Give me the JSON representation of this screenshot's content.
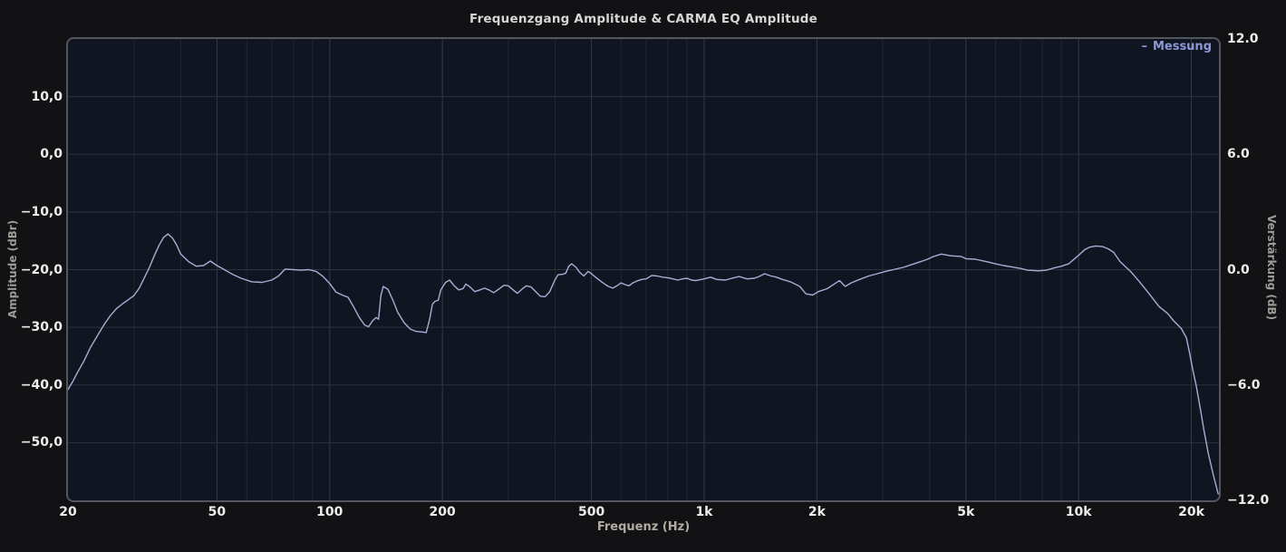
{
  "title": "Frequenzgang Amplitude & CARMA EQ Amplitude",
  "legend": {
    "marker": "–",
    "label": "Messung",
    "color": "#8d99d6",
    "position": "top-right"
  },
  "axes": {
    "x": {
      "label": "Frequenz (Hz)",
      "scale": "log",
      "min": 20,
      "max": 23700,
      "ticks": [
        {
          "f": 20,
          "label": "20"
        },
        {
          "f": 50,
          "label": "50"
        },
        {
          "f": 100,
          "label": "100"
        },
        {
          "f": 200,
          "label": "200"
        },
        {
          "f": 500,
          "label": "500"
        },
        {
          "f": 1000,
          "label": "1k"
        },
        {
          "f": 2000,
          "label": "2k"
        },
        {
          "f": 5000,
          "label": "5k"
        },
        {
          "f": 10000,
          "label": "10k"
        },
        {
          "f": 20000,
          "label": "20k"
        }
      ],
      "minor_gridlines": [
        30,
        40,
        60,
        70,
        80,
        90,
        300,
        400,
        600,
        700,
        800,
        900,
        3000,
        4000,
        6000,
        7000,
        8000,
        9000
      ]
    },
    "y_left": {
      "label": "Amplitude (dBr)",
      "min": -60,
      "max": 20,
      "ticks": [
        {
          "v": 10,
          "label": "10,0"
        },
        {
          "v": 0,
          "label": "0,0"
        },
        {
          "v": -10,
          "label": "−10,0"
        },
        {
          "v": -20,
          "label": "−20,0"
        },
        {
          "v": -30,
          "label": "−30,0"
        },
        {
          "v": -40,
          "label": "−40,0"
        },
        {
          "v": -50,
          "label": "−50,0"
        }
      ]
    },
    "y_right": {
      "label": "Verstärkung (dB)",
      "min": -12,
      "max": 12,
      "ticks": [
        {
          "v": 12,
          "label": "12.0"
        },
        {
          "v": 6,
          "label": "6.0"
        },
        {
          "v": 0,
          "label": "0.0"
        },
        {
          "v": -6,
          "label": "−6.0"
        },
        {
          "v": -12,
          "label": "−12.0"
        }
      ]
    }
  },
  "colors": {
    "background": "#121214",
    "plot_background": "#111522",
    "plot_border": "#52575f",
    "grid_minor": "#212631",
    "grid_major": "#343a46",
    "grid_horizontal": "#2d323d",
    "trace": "#a7aed3",
    "tick_text": "#ededed",
    "title_text": "#d6d6d6"
  },
  "chart_data": {
    "type": "line",
    "title": "Frequenzgang Amplitude & CARMA EQ Amplitude",
    "xlabel": "Frequenz (Hz)",
    "ylabel": "Amplitude (dBr)",
    "ylabel_right": "Verstärkung (dB)",
    "x_scale": "log",
    "xlim": [
      20,
      23700
    ],
    "ylim": [
      -60,
      20
    ],
    "ylim_right": [
      -12,
      12
    ],
    "grid": true,
    "legend_position": "top-right",
    "series": [
      {
        "name": "Messung",
        "color": "#a7aed3",
        "axis": "left",
        "units": "dBr",
        "points": [
          [
            20,
            -40.8
          ],
          [
            20.6,
            -39.4
          ],
          [
            21.2,
            -37.8
          ],
          [
            22,
            -36.0
          ],
          [
            23,
            -33.4
          ],
          [
            24,
            -31.4
          ],
          [
            25,
            -29.5
          ],
          [
            26,
            -27.9
          ],
          [
            27,
            -26.7
          ],
          [
            28,
            -25.9
          ],
          [
            29,
            -25.2
          ],
          [
            30,
            -24.5
          ],
          [
            31,
            -23.2
          ],
          [
            32,
            -21.4
          ],
          [
            33,
            -19.6
          ],
          [
            34,
            -17.6
          ],
          [
            35,
            -15.8
          ],
          [
            36,
            -14.4
          ],
          [
            37,
            -13.8
          ],
          [
            38,
            -14.5
          ],
          [
            39,
            -15.7
          ],
          [
            40,
            -17.3
          ],
          [
            42,
            -18.6
          ],
          [
            44,
            -19.4
          ],
          [
            46,
            -19.3
          ],
          [
            48,
            -18.5
          ],
          [
            50,
            -19.3
          ],
          [
            52,
            -19.9
          ],
          [
            55,
            -20.8
          ],
          [
            58,
            -21.5
          ],
          [
            62,
            -22.1
          ],
          [
            66,
            -22.2
          ],
          [
            70,
            -21.8
          ],
          [
            73,
            -21.1
          ],
          [
            76,
            -19.9
          ],
          [
            80,
            -20.0
          ],
          [
            84,
            -20.1
          ],
          [
            88,
            -20.0
          ],
          [
            92,
            -20.3
          ],
          [
            96,
            -21.2
          ],
          [
            100,
            -22.4
          ],
          [
            104,
            -23.9
          ],
          [
            108,
            -24.4
          ],
          [
            112,
            -24.8
          ],
          [
            116,
            -26.5
          ],
          [
            120,
            -28.3
          ],
          [
            124,
            -29.6
          ],
          [
            127,
            -29.9
          ],
          [
            130,
            -28.9
          ],
          [
            133,
            -28.3
          ],
          [
            135,
            -28.6
          ],
          [
            137,
            -24.5
          ],
          [
            139,
            -22.9
          ],
          [
            143,
            -23.4
          ],
          [
            148,
            -25.5
          ],
          [
            152,
            -27.4
          ],
          [
            158,
            -29.2
          ],
          [
            164,
            -30.3
          ],
          [
            170,
            -30.7
          ],
          [
            176,
            -30.8
          ],
          [
            181,
            -30.9
          ],
          [
            185,
            -28.5
          ],
          [
            188,
            -26.0
          ],
          [
            191,
            -25.5
          ],
          [
            195,
            -25.3
          ],
          [
            198,
            -23.5
          ],
          [
            204,
            -22.2
          ],
          [
            209,
            -21.8
          ],
          [
            215,
            -22.8
          ],
          [
            221,
            -23.5
          ],
          [
            227,
            -23.3
          ],
          [
            231,
            -22.5
          ],
          [
            237,
            -23.0
          ],
          [
            244,
            -23.8
          ],
          [
            252,
            -23.5
          ],
          [
            259,
            -23.2
          ],
          [
            266,
            -23.5
          ],
          [
            274,
            -24.0
          ],
          [
            284,
            -23.3
          ],
          [
            292,
            -22.7
          ],
          [
            300,
            -22.8
          ],
          [
            309,
            -23.5
          ],
          [
            317,
            -24.1
          ],
          [
            326,
            -23.4
          ],
          [
            335,
            -22.8
          ],
          [
            345,
            -23.0
          ],
          [
            355,
            -23.8
          ],
          [
            365,
            -24.6
          ],
          [
            376,
            -24.7
          ],
          [
            387,
            -23.8
          ],
          [
            400,
            -21.7
          ],
          [
            407,
            -20.9
          ],
          [
            419,
            -20.8
          ],
          [
            427,
            -20.6
          ],
          [
            435,
            -19.4
          ],
          [
            443,
            -19.0
          ],
          [
            455,
            -19.6
          ],
          [
            464,
            -20.4
          ],
          [
            477,
            -21.1
          ],
          [
            490,
            -20.3
          ],
          [
            500,
            -20.7
          ],
          [
            513,
            -21.3
          ],
          [
            527,
            -21.9
          ],
          [
            540,
            -22.4
          ],
          [
            555,
            -22.9
          ],
          [
            570,
            -23.2
          ],
          [
            585,
            -22.8
          ],
          [
            600,
            -22.3
          ],
          [
            615,
            -22.6
          ],
          [
            630,
            -22.8
          ],
          [
            645,
            -22.3
          ],
          [
            660,
            -22.0
          ],
          [
            680,
            -21.7
          ],
          [
            700,
            -21.6
          ],
          [
            725,
            -21.0
          ],
          [
            750,
            -21.1
          ],
          [
            775,
            -21.3
          ],
          [
            800,
            -21.4
          ],
          [
            825,
            -21.6
          ],
          [
            850,
            -21.8
          ],
          [
            875,
            -21.6
          ],
          [
            900,
            -21.5
          ],
          [
            925,
            -21.8
          ],
          [
            950,
            -21.9
          ],
          [
            1000,
            -21.6
          ],
          [
            1040,
            -21.3
          ],
          [
            1080,
            -21.7
          ],
          [
            1140,
            -21.8
          ],
          [
            1200,
            -21.4
          ],
          [
            1240,
            -21.2
          ],
          [
            1300,
            -21.6
          ],
          [
            1360,
            -21.5
          ],
          [
            1400,
            -21.2
          ],
          [
            1450,
            -20.7
          ],
          [
            1510,
            -21.1
          ],
          [
            1560,
            -21.3
          ],
          [
            1620,
            -21.7
          ],
          [
            1700,
            -22.1
          ],
          [
            1800,
            -22.9
          ],
          [
            1870,
            -24.2
          ],
          [
            1950,
            -24.4
          ],
          [
            2020,
            -23.8
          ],
          [
            2130,
            -23.3
          ],
          [
            2250,
            -22.3
          ],
          [
            2300,
            -21.9
          ],
          [
            2380,
            -22.9
          ],
          [
            2470,
            -22.3
          ],
          [
            2600,
            -21.7
          ],
          [
            2750,
            -21.1
          ],
          [
            2900,
            -20.7
          ],
          [
            3050,
            -20.3
          ],
          [
            3200,
            -20.0
          ],
          [
            3400,
            -19.6
          ],
          [
            3550,
            -19.2
          ],
          [
            3750,
            -18.7
          ],
          [
            3950,
            -18.2
          ],
          [
            4100,
            -17.7
          ],
          [
            4300,
            -17.3
          ],
          [
            4550,
            -17.6
          ],
          [
            4850,
            -17.7
          ],
          [
            5000,
            -18.1
          ],
          [
            5300,
            -18.2
          ],
          [
            5750,
            -18.7
          ],
          [
            6000,
            -19.0
          ],
          [
            6300,
            -19.3
          ],
          [
            6600,
            -19.5
          ],
          [
            7000,
            -19.8
          ],
          [
            7300,
            -20.1
          ],
          [
            7800,
            -20.2
          ],
          [
            8200,
            -20.1
          ],
          [
            8600,
            -19.7
          ],
          [
            9000,
            -19.4
          ],
          [
            9400,
            -19.0
          ],
          [
            9800,
            -18.0
          ],
          [
            10000,
            -17.5
          ],
          [
            10400,
            -16.5
          ],
          [
            10700,
            -16.1
          ],
          [
            11100,
            -15.9
          ],
          [
            11600,
            -16.0
          ],
          [
            12000,
            -16.4
          ],
          [
            12400,
            -17.0
          ],
          [
            12900,
            -18.6
          ],
          [
            13400,
            -19.6
          ],
          [
            13800,
            -20.4
          ],
          [
            14500,
            -22.0
          ],
          [
            15400,
            -24.1
          ],
          [
            16400,
            -26.4
          ],
          [
            17300,
            -27.6
          ],
          [
            17900,
            -28.8
          ],
          [
            18800,
            -30.2
          ],
          [
            19400,
            -31.8
          ],
          [
            19800,
            -34.5
          ],
          [
            20200,
            -37.5
          ],
          [
            20600,
            -40.0
          ],
          [
            21200,
            -44.6
          ],
          [
            21600,
            -47.8
          ],
          [
            22200,
            -51.9
          ],
          [
            22900,
            -55.6
          ],
          [
            23600,
            -58.9
          ]
        ]
      }
    ]
  }
}
